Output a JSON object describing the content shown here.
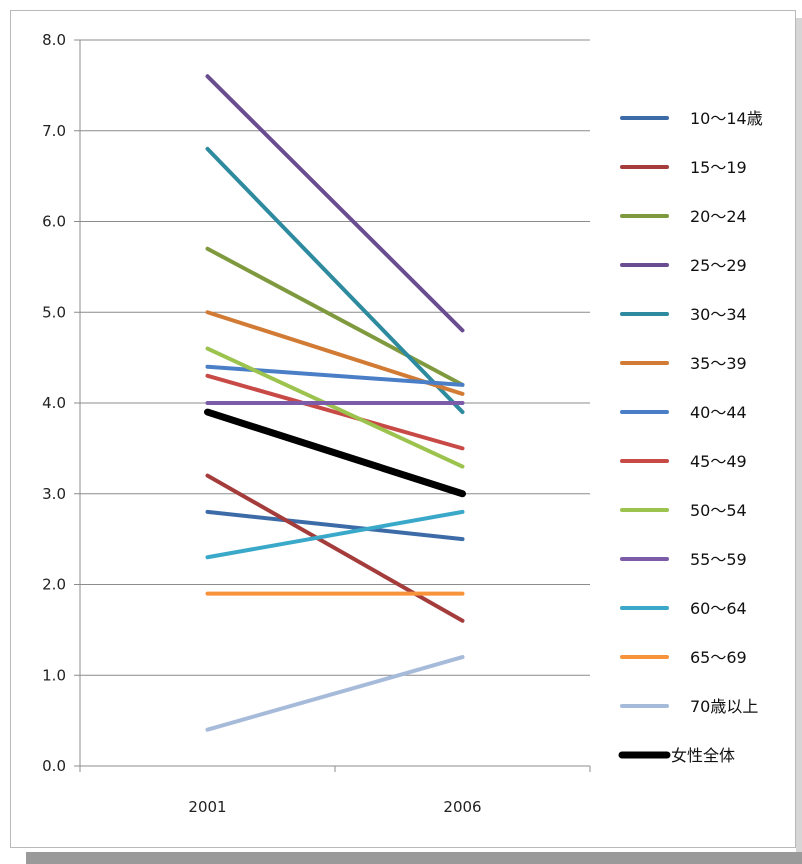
{
  "chart_data": {
    "type": "line",
    "x": [
      "2001",
      "2006"
    ],
    "ylim": [
      0,
      8
    ],
    "yticks": [
      "0.0",
      "1.0",
      "2.0",
      "3.0",
      "4.0",
      "5.0",
      "6.0",
      "7.0",
      "8.0"
    ],
    "grid": true,
    "legend_position": "right",
    "series": [
      {
        "name": "10～14歳",
        "values": [
          2.8,
          2.5
        ],
        "color": "#3d6ba8"
      },
      {
        "name": "15～19",
        "values": [
          3.2,
          1.6
        ],
        "color": "#a33c3a"
      },
      {
        "name": "20～24",
        "values": [
          5.7,
          4.2
        ],
        "color": "#7f9a3e"
      },
      {
        "name": "25～29",
        "values": [
          7.6,
          4.8
        ],
        "color": "#6a4d90"
      },
      {
        "name": "30～34",
        "values": [
          6.8,
          3.9
        ],
        "color": "#2e8a9e"
      },
      {
        "name": "35～39",
        "values": [
          5.0,
          4.1
        ],
        "color": "#d27b35"
      },
      {
        "name": "40～44",
        "values": [
          4.4,
          4.2
        ],
        "color": "#4a7fc7"
      },
      {
        "name": "45～49",
        "values": [
          4.3,
          3.5
        ],
        "color": "#c84a47"
      },
      {
        "name": "50～54",
        "values": [
          4.6,
          3.3
        ],
        "color": "#9cc34e"
      },
      {
        "name": "55～59",
        "values": [
          4.0,
          4.0
        ],
        "color": "#7c5ca8"
      },
      {
        "name": "60～64",
        "values": [
          2.3,
          2.8
        ],
        "color": "#3aa9c9"
      },
      {
        "name": "65～69",
        "values": [
          1.9,
          1.9
        ],
        "color": "#f7933a"
      },
      {
        "name": "70歳以上",
        "values": [
          0.4,
          1.2
        ],
        "color": "#a6bad9"
      },
      {
        "name": "女性全体",
        "values": [
          3.9,
          3.0
        ],
        "color": "#000000",
        "bold": true
      }
    ]
  }
}
